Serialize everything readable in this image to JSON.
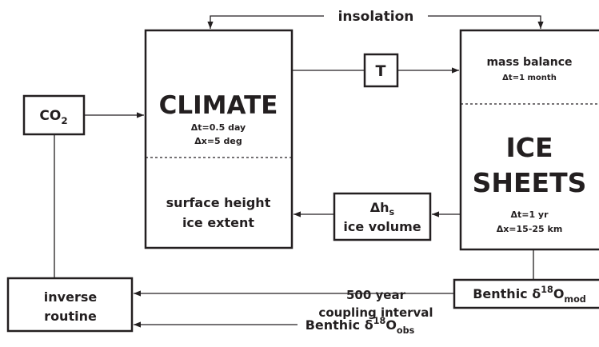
{
  "insolation": "insolation",
  "coupling": [
    "500 year",
    "coupling interval"
  ],
  "climate": {
    "title": "CLIMATE",
    "dt": "Δt=0.5 day",
    "dx": "Δx=5 deg",
    "outputs": [
      "surface height",
      "ice extent"
    ]
  },
  "ice_sheets": {
    "input": "mass balance",
    "input_dt": "Δt=1 month",
    "title": [
      "ICE",
      "SHEETS"
    ],
    "dt": "Δt=1 yr",
    "dx": "Δx=15-25 km"
  },
  "co2": {
    "base": "CO",
    "sub": "2"
  },
  "t": "T",
  "ice_volume": {
    "base": "Δh",
    "sub": "s",
    "label": "ice volume"
  },
  "inverse": [
    "inverse",
    "routine"
  ],
  "benthic_mod": {
    "base": "Benthic δ",
    "sup": "18",
    "mid": "O",
    "sub": "mod"
  },
  "benthic_obs": {
    "base": "Benthic δ",
    "sup": "18",
    "mid": "O",
    "sub": "obs"
  }
}
